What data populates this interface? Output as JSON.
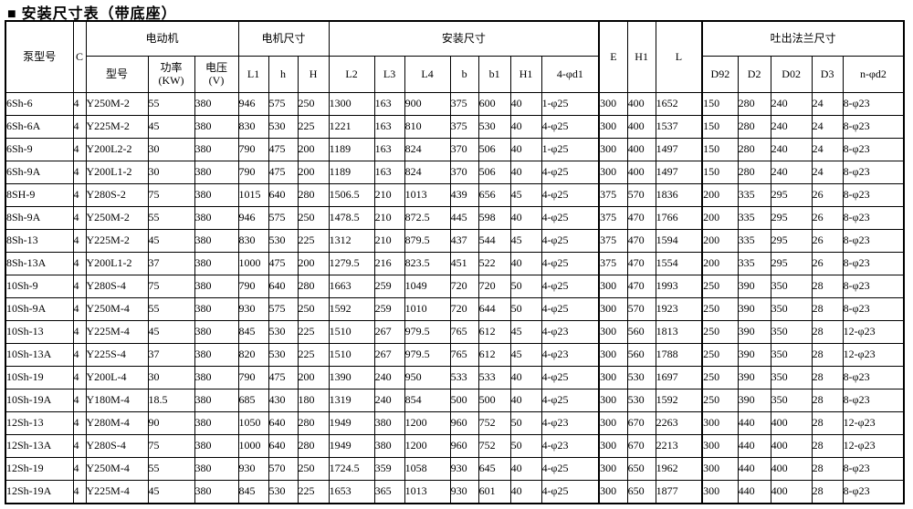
{
  "colors": {
    "background": "#ffffff",
    "text": "#000000",
    "border": "#000000"
  },
  "title": "■ 安装尺寸表（带底座）",
  "table": {
    "groups": {
      "motor": "电动机",
      "motor_size": "电机尺寸",
      "install_size": "安装尺寸",
      "flange": "吐出法兰尺寸"
    },
    "columns": {
      "pump_model": "泵型号",
      "c": "C",
      "motor_model": "型号",
      "power_line1": "功率",
      "power_line2": "(KW)",
      "voltage_line1": "电压",
      "voltage_line2": "(V)",
      "l1": "L1",
      "h_lower": "h",
      "h_upper": "H",
      "l2": "L2",
      "l3": "L3",
      "l4": "L4",
      "b": "b",
      "b1": "b1",
      "h1_install": "H1",
      "d1_holes": "4-φd1",
      "e": "E",
      "h1_overall": "H1",
      "l_overall": "L",
      "d92": "D92",
      "d2": "D2",
      "d02": "D02",
      "d3": "D3",
      "n_d2_holes": "n-φd2"
    },
    "rows": [
      [
        "6Sh-6",
        "4",
        "Y250M-2",
        "55",
        "380",
        "946",
        "575",
        "250",
        "1300",
        "163",
        "900",
        "375",
        "600",
        "40",
        "1-φ25",
        "300",
        "400",
        "1652",
        "150",
        "280",
        "240",
        "24",
        "8-φ23"
      ],
      [
        "6Sh-6A",
        "4",
        "Y225M-2",
        "45",
        "380",
        "830",
        "530",
        "225",
        "1221",
        "163",
        "810",
        "375",
        "530",
        "40",
        "4-φ25",
        "300",
        "400",
        "1537",
        "150",
        "280",
        "240",
        "24",
        "8-φ23"
      ],
      [
        "6Sh-9",
        "4",
        "Y200L2-2",
        "30",
        "380",
        "790",
        "475",
        "200",
        "1189",
        "163",
        "824",
        "370",
        "506",
        "40",
        "1-φ25",
        "300",
        "400",
        "1497",
        "150",
        "280",
        "240",
        "24",
        "8-φ23"
      ],
      [
        "6Sh-9A",
        "4",
        "Y200L1-2",
        "30",
        "380",
        "790",
        "475",
        "200",
        "1189",
        "163",
        "824",
        "370",
        "506",
        "40",
        "4-φ25",
        "300",
        "400",
        "1497",
        "150",
        "280",
        "240",
        "24",
        "8-φ23"
      ],
      [
        "8SH-9",
        "4",
        "Y280S-2",
        "75",
        "380",
        "1015",
        "640",
        "280",
        "1506.5",
        "210",
        "1013",
        "439",
        "656",
        "45",
        "4-φ25",
        "375",
        "570",
        "1836",
        "200",
        "335",
        "295",
        "26",
        "8-φ23"
      ],
      [
        "8Sh-9A",
        "4",
        "Y250M-2",
        "55",
        "380",
        "946",
        "575",
        "250",
        "1478.5",
        "210",
        "872.5",
        "445",
        "598",
        "40",
        "4-φ25",
        "375",
        "470",
        "1766",
        "200",
        "335",
        "295",
        "26",
        "8-φ23"
      ],
      [
        "8Sh-13",
        "4",
        "Y225M-2",
        "45",
        "380",
        "830",
        "530",
        "225",
        "1312",
        "210",
        "879.5",
        "437",
        "544",
        "45",
        "4-φ25",
        "375",
        "470",
        "1594",
        "200",
        "335",
        "295",
        "26",
        "8-φ23"
      ],
      [
        "8Sh-13A",
        "4",
        "Y200L1-2",
        "37",
        "380",
        "1000",
        "475",
        "200",
        "1279.5",
        "216",
        "823.5",
        "451",
        "522",
        "40",
        "4-φ25",
        "375",
        "470",
        "1554",
        "200",
        "335",
        "295",
        "26",
        "8-φ23"
      ],
      [
        "10Sh-9",
        "4",
        "Y280S-4",
        "75",
        "380",
        "790",
        "640",
        "280",
        "1663",
        "259",
        "1049",
        "720",
        "720",
        "50",
        "4-φ25",
        "300",
        "470",
        "1993",
        "250",
        "390",
        "350",
        "28",
        "8-φ23"
      ],
      [
        "10Sh-9A",
        "4",
        "Y250M-4",
        "55",
        "380",
        "930",
        "575",
        "250",
        "1592",
        "259",
        "1010",
        "720",
        "644",
        "50",
        "4-φ25",
        "300",
        "570",
        "1923",
        "250",
        "390",
        "350",
        "28",
        "8-φ23"
      ],
      [
        "10Sh-13",
        "4",
        "Y225M-4",
        "45",
        "380",
        "845",
        "530",
        "225",
        "1510",
        "267",
        "979.5",
        "765",
        "612",
        "45",
        "4-φ23",
        "300",
        "560",
        "1813",
        "250",
        "390",
        "350",
        "28",
        "12-φ23"
      ],
      [
        "10Sh-13A",
        "4",
        "Y225S-4",
        "37",
        "380",
        "820",
        "530",
        "225",
        "1510",
        "267",
        "979.5",
        "765",
        "612",
        "45",
        "4-φ23",
        "300",
        "560",
        "1788",
        "250",
        "390",
        "350",
        "28",
        "12-φ23"
      ],
      [
        "10Sh-19",
        "4",
        "Y200L-4",
        "30",
        "380",
        "790",
        "475",
        "200",
        "1390",
        "240",
        "950",
        "533",
        "533",
        "40",
        "4-φ25",
        "300",
        "530",
        "1697",
        "250",
        "390",
        "350",
        "28",
        "8-φ23"
      ],
      [
        "10Sh-19A",
        "4",
        "Y180M-4",
        "18.5",
        "380",
        "685",
        "430",
        "180",
        "1319",
        "240",
        "854",
        "500",
        "500",
        "40",
        "4-φ25",
        "300",
        "530",
        "1592",
        "250",
        "390",
        "350",
        "28",
        "8-φ23"
      ],
      [
        "12Sh-13",
        "4",
        "Y280M-4",
        "90",
        "380",
        "1050",
        "640",
        "280",
        "1949",
        "380",
        "1200",
        "960",
        "752",
        "50",
        "4-φ23",
        "300",
        "670",
        "2263",
        "300",
        "440",
        "400",
        "28",
        "12-φ23"
      ],
      [
        "12Sh-13A",
        "4",
        "Y280S-4",
        "75",
        "380",
        "1000",
        "640",
        "280",
        "1949",
        "380",
        "1200",
        "960",
        "752",
        "50",
        "4-φ23",
        "300",
        "670",
        "2213",
        "300",
        "440",
        "400",
        "28",
        "12-φ23"
      ],
      [
        "12Sh-19",
        "4",
        "Y250M-4",
        "55",
        "380",
        "930",
        "570",
        "250",
        "1724.5",
        "359",
        "1058",
        "930",
        "645",
        "40",
        "4-φ25",
        "300",
        "650",
        "1962",
        "300",
        "440",
        "400",
        "28",
        "8-φ23"
      ],
      [
        "12Sh-19A",
        "4",
        "Y225M-4",
        "45",
        "380",
        "845",
        "530",
        "225",
        "1653",
        "365",
        "1013",
        "930",
        "601",
        "40",
        "4-φ25",
        "300",
        "650",
        "1877",
        "300",
        "440",
        "400",
        "28",
        "8-φ23"
      ]
    ]
  }
}
